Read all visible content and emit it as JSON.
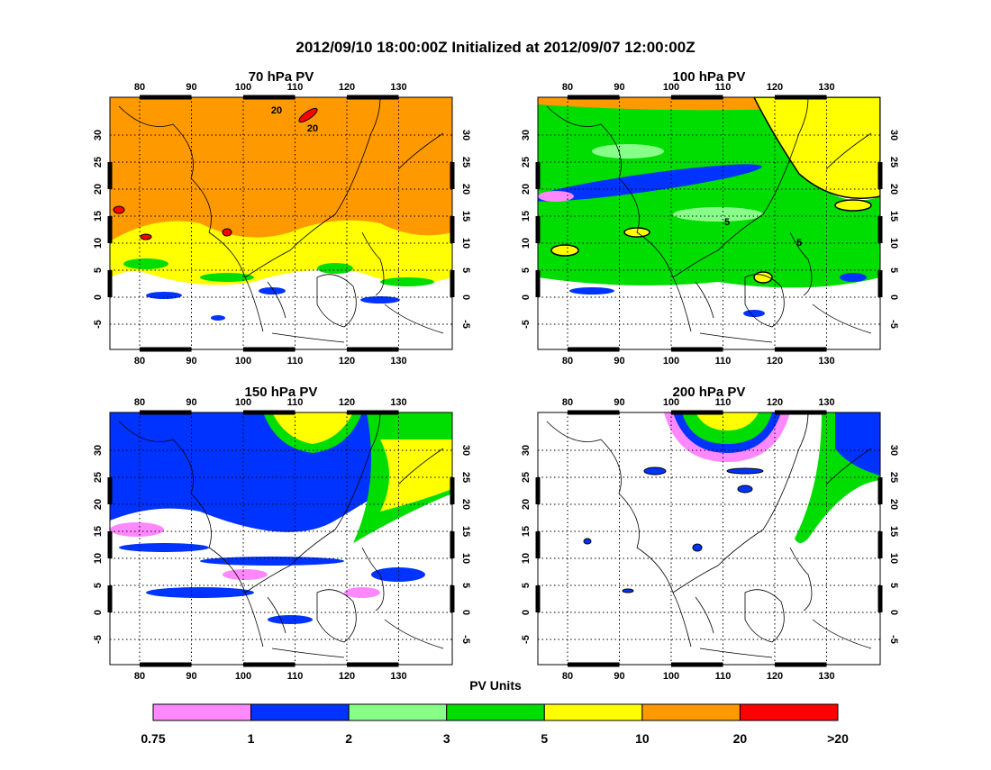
{
  "title": "2012/09/10 18:00:00Z Initialized at 2012/09/07 12:00:00Z",
  "panels": [
    {
      "title": "70 hPa PV",
      "contour_labels": [
        "20",
        "20"
      ]
    },
    {
      "title": "100 hPa PV",
      "contour_labels": [
        "5",
        "5"
      ]
    },
    {
      "title": "150 hPa PV",
      "contour_labels": []
    },
    {
      "title": "200 hPa PV",
      "contour_labels": []
    }
  ],
  "lon_ticks": [
    80,
    90,
    100,
    110,
    120,
    130
  ],
  "lat_ticks": [
    30,
    25,
    20,
    15,
    10,
    5,
    0,
    -5
  ],
  "colorbar": {
    "label": "PV Units",
    "colors": [
      "#ff88ff",
      "#0033ff",
      "#88ff88",
      "#00dd00",
      "#ffff00",
      "#ff9900",
      "#ff0000"
    ],
    "tick_labels": [
      "0.75",
      "1",
      "2",
      "3",
      "5",
      "10",
      "20",
      ">20"
    ]
  }
}
